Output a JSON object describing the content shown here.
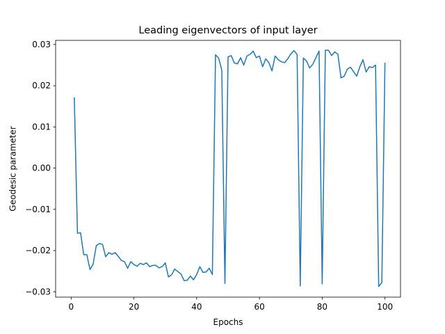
{
  "chart_data": {
    "type": "line",
    "title": "Leading eigenvectors of input layer",
    "xlabel": "Epochs",
    "ylabel": "Geodesic parameter",
    "xlim": [
      -4.95,
      104.95
    ],
    "ylim": [
      -0.0313,
      0.031
    ],
    "xticks": [
      0,
      20,
      40,
      60,
      80,
      100
    ],
    "xtick_labels": [
      "0",
      "20",
      "40",
      "60",
      "80",
      "100"
    ],
    "yticks": [
      -0.03,
      -0.02,
      -0.01,
      0.0,
      0.01,
      0.02,
      0.03
    ],
    "ytick_labels": [
      "−0.03",
      "−0.02",
      "−0.01",
      "0.00",
      "0.01",
      "0.02",
      "0.03"
    ],
    "grid": false,
    "series": [
      {
        "color": "#1f77b4",
        "x": [
          1,
          2,
          3,
          4,
          5,
          6,
          7,
          8,
          9,
          10,
          11,
          12,
          13,
          14,
          15,
          16,
          17,
          18,
          19,
          20,
          21,
          22,
          23,
          24,
          25,
          26,
          27,
          28,
          29,
          30,
          31,
          32,
          33,
          34,
          35,
          36,
          37,
          38,
          39,
          40,
          41,
          42,
          43,
          44,
          45,
          46,
          47,
          48,
          49,
          50,
          51,
          52,
          53,
          54,
          55,
          56,
          57,
          58,
          59,
          60,
          61,
          62,
          63,
          64,
          65,
          66,
          67,
          68,
          69,
          70,
          71,
          72,
          73,
          74,
          75,
          76,
          77,
          78,
          79,
          80,
          81,
          82,
          83,
          84,
          85,
          86,
          87,
          88,
          89,
          90,
          91,
          92,
          93,
          94,
          95,
          96,
          97,
          98,
          99,
          100
        ],
        "values": [
          0.0172,
          -0.0158,
          -0.0157,
          -0.021,
          -0.021,
          -0.0246,
          -0.0233,
          -0.0188,
          -0.0183,
          -0.0185,
          -0.0215,
          -0.0205,
          -0.0209,
          -0.0205,
          -0.0214,
          -0.0224,
          -0.0227,
          -0.0243,
          -0.0227,
          -0.0234,
          -0.0238,
          -0.0231,
          -0.0234,
          -0.023,
          -0.0239,
          -0.0236,
          -0.0236,
          -0.0242,
          -0.0239,
          -0.023,
          -0.0264,
          -0.0259,
          -0.0245,
          -0.0251,
          -0.0257,
          -0.0273,
          -0.0272,
          -0.0262,
          -0.0271,
          -0.0258,
          -0.0239,
          -0.0253,
          -0.0252,
          -0.0243,
          -0.0258,
          0.0275,
          0.0267,
          0.0238,
          -0.028,
          0.027,
          0.0273,
          0.0255,
          0.0253,
          0.0268,
          0.025,
          0.0272,
          0.0276,
          0.0284,
          0.0268,
          0.0272,
          0.0246,
          0.0265,
          0.0256,
          0.0236,
          0.0272,
          0.0263,
          0.0258,
          0.0256,
          0.0265,
          0.0277,
          0.0285,
          0.0276,
          -0.0286,
          0.0267,
          0.026,
          0.0243,
          0.0252,
          0.0268,
          0.0284,
          -0.0281,
          0.0286,
          0.0286,
          0.0273,
          0.0282,
          0.0276,
          0.0219,
          0.0223,
          0.024,
          0.0245,
          0.0234,
          0.0223,
          0.0246,
          0.0263,
          0.0233,
          0.0246,
          0.0244,
          0.025,
          -0.0287,
          -0.0278,
          0.0256
        ]
      }
    ]
  }
}
